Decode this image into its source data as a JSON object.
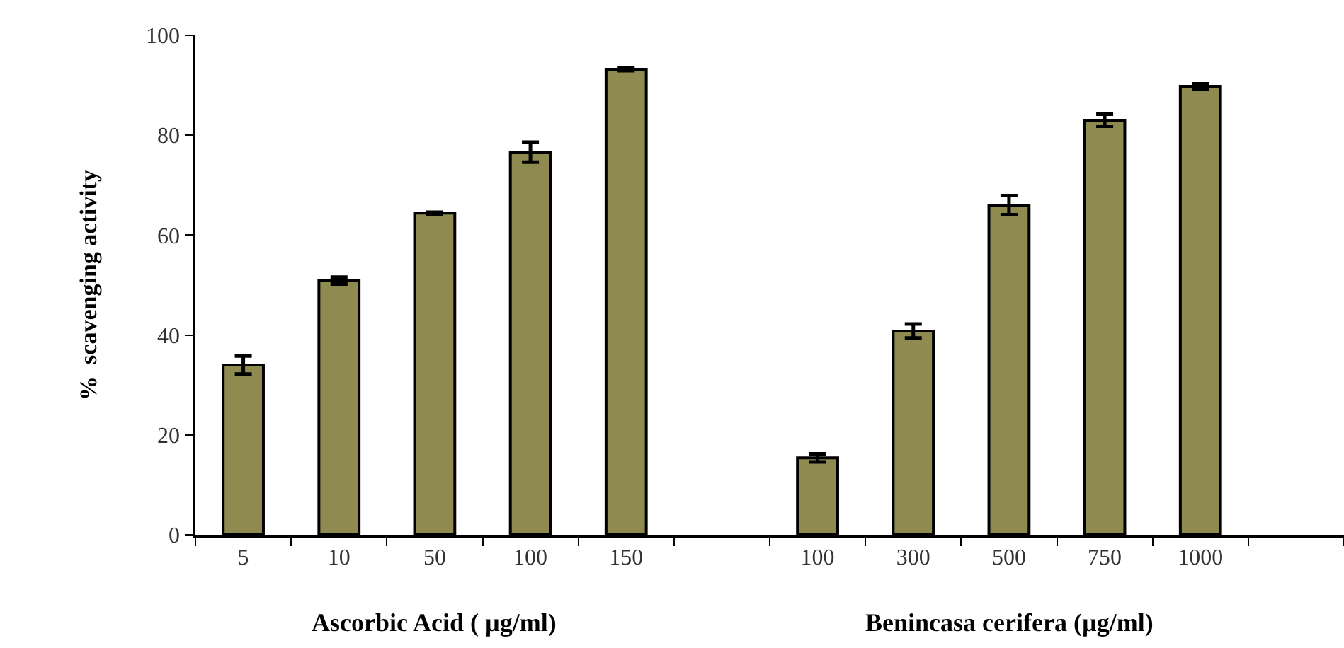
{
  "chart_data": {
    "type": "bar",
    "ylabel": "%  scavenging activity",
    "xlabel": "Ascorbic Acid ( µg/ml)",
    "annotations": [
      "Benincasa cerifera (µg/ml)"
    ],
    "categories": [
      "5",
      "10",
      "50",
      "100",
      "150",
      null,
      "100",
      "300",
      "500",
      "750",
      "1000",
      null
    ],
    "values": [
      34.0,
      50.9,
      64.4,
      76.6,
      93.2,
      null,
      15.4,
      40.8,
      66.0,
      83.0,
      89.8,
      null
    ],
    "errors": [
      1.8,
      0.7,
      0.2,
      2.0,
      0.3,
      null,
      0.8,
      1.4,
      1.9,
      1.2,
      0.5,
      null
    ],
    "color": "#8f8a50",
    "ylim": [
      0,
      100
    ],
    "yticks": [
      0,
      20,
      40,
      60,
      80,
      100
    ]
  }
}
